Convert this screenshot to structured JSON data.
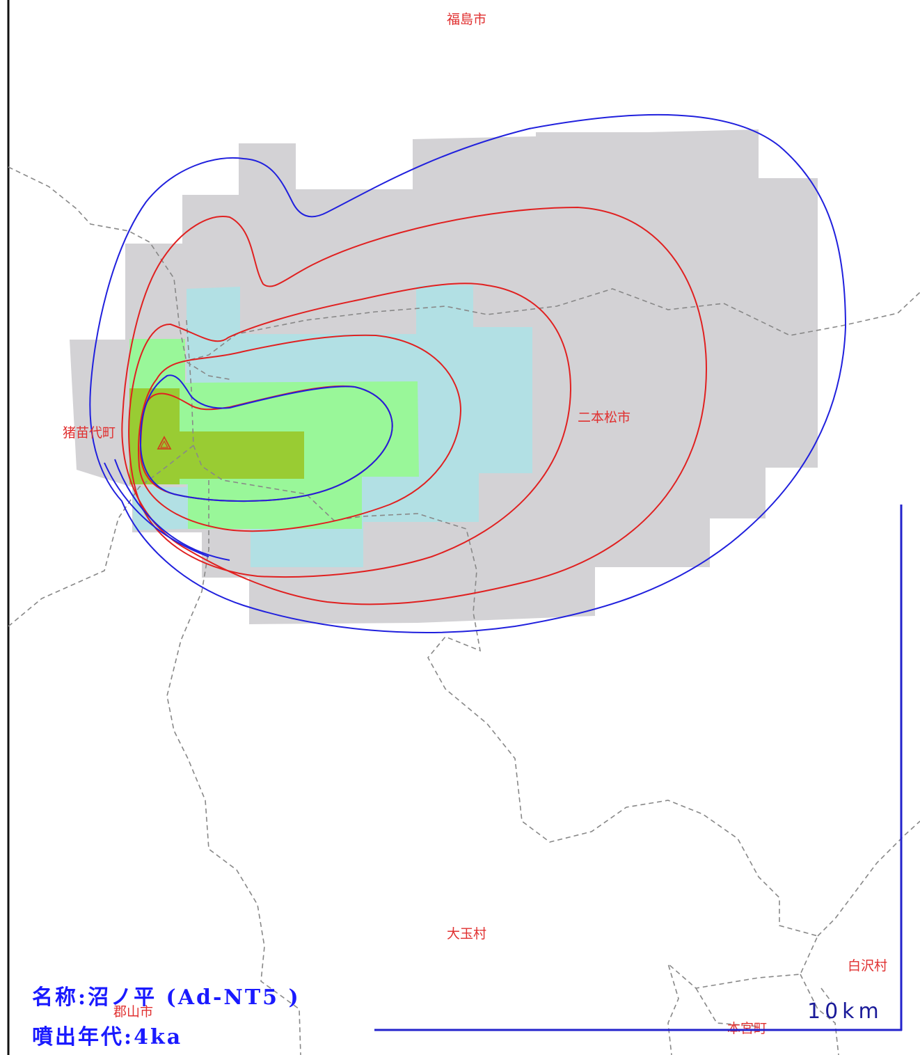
{
  "places": [
    {
      "id": "fukushima",
      "label": "福島市"
    },
    {
      "id": "inawashiro",
      "label": "猪苗代町"
    },
    {
      "id": "nihonmatsu",
      "label": "二本松市"
    },
    {
      "id": "otama",
      "label": "大玉村"
    },
    {
      "id": "shirasawa",
      "label": "白沢村"
    },
    {
      "id": "koriyama",
      "label": "郡山市"
    },
    {
      "id": "motomiya",
      "label": "本宮町"
    }
  ],
  "scale_bar": {
    "label": "10km"
  },
  "caption": {
    "name_line": "名称:沼ノ平 (Ad-NT5 )",
    "age_line": "噴出年代:4ka"
  },
  "colors": {
    "grey_zone": "#d3d2d5",
    "light_blue_zone": "#b2e0e4",
    "light_green_zone": "#99f799",
    "dark_green_zone": "#99cc33",
    "red_contour": "#e02020",
    "blue_contour": "#2020dd",
    "boundary": "#888888",
    "place_label": "#e03030",
    "caption_text": "#1a1aff"
  },
  "icons": {
    "vent": "triangle-vent-icon"
  }
}
